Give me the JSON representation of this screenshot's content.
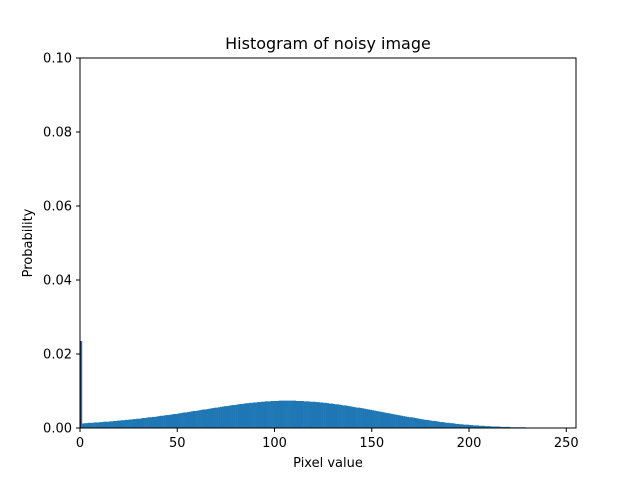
{
  "chart_data": {
    "type": "bar",
    "title": "Histogram of noisy image",
    "xlabel": "Pixel value",
    "ylabel": "Probability",
    "xlim": [
      0,
      255
    ],
    "ylim": [
      0,
      0.1
    ],
    "x_ticks": [
      0,
      50,
      100,
      150,
      200,
      250
    ],
    "x_tick_labels": [
      "0",
      "50",
      "100",
      "150",
      "200",
      "250"
    ],
    "y_ticks": [
      0,
      0.02,
      0.04,
      0.06,
      0.08,
      0.1
    ],
    "y_tick_labels": [
      "0.00",
      "0.02",
      "0.04",
      "0.06",
      "0.08",
      "0.10"
    ],
    "grid": false,
    "color": "#1f77b4",
    "bin_edges_start": 0,
    "bin_width": 1,
    "values": [
      0.0235,
      0.0012,
      0.0013,
      0.0013,
      0.0014,
      0.0014,
      0.0014,
      0.0015,
      0.0015,
      0.0015,
      0.0016,
      0.0016,
      0.0017,
      0.0017,
      0.0017,
      0.0018,
      0.0018,
      0.0019,
      0.0019,
      0.002,
      0.002,
      0.0021,
      0.0021,
      0.0022,
      0.0022,
      0.0023,
      0.0023,
      0.0024,
      0.0024,
      0.0025,
      0.0025,
      0.0026,
      0.0027,
      0.0027,
      0.0028,
      0.0029,
      0.0029,
      0.003,
      0.003,
      0.0031,
      0.0032,
      0.0033,
      0.0033,
      0.0034,
      0.0035,
      0.0035,
      0.0036,
      0.0037,
      0.0038,
      0.0038,
      0.0039,
      0.004,
      0.0041,
      0.0042,
      0.0042,
      0.0043,
      0.0044,
      0.0045,
      0.0046,
      0.0046,
      0.0047,
      0.0048,
      0.0049,
      0.005,
      0.005,
      0.0051,
      0.0052,
      0.0053,
      0.0054,
      0.0055,
      0.0055,
      0.0056,
      0.0057,
      0.0058,
      0.0059,
      0.0059,
      0.006,
      0.0061,
      0.0062,
      0.0062,
      0.0063,
      0.0064,
      0.0065,
      0.0065,
      0.0066,
      0.0067,
      0.0067,
      0.0068,
      0.0068,
      0.0069,
      0.0069,
      0.007,
      0.007,
      0.0071,
      0.0071,
      0.0072,
      0.0072,
      0.0072,
      0.0073,
      0.0073,
      0.0073,
      0.0073,
      0.0074,
      0.0074,
      0.0074,
      0.0074,
      0.0074,
      0.0074,
      0.0074,
      0.0074,
      0.0074,
      0.0073,
      0.0073,
      0.0073,
      0.0073,
      0.0072,
      0.0072,
      0.0072,
      0.0071,
      0.0071,
      0.0071,
      0.007,
      0.007,
      0.0069,
      0.0069,
      0.0068,
      0.0068,
      0.0067,
      0.0066,
      0.0066,
      0.0065,
      0.0064,
      0.0064,
      0.0063,
      0.0062,
      0.0061,
      0.0061,
      0.006,
      0.0059,
      0.0058,
      0.0057,
      0.0056,
      0.0055,
      0.0055,
      0.0054,
      0.0053,
      0.0052,
      0.0051,
      0.005,
      0.0049,
      0.0048,
      0.0047,
      0.0046,
      0.0045,
      0.0044,
      0.0043,
      0.0042,
      0.0041,
      0.004,
      0.0039,
      0.0038,
      0.0037,
      0.0036,
      0.0035,
      0.0034,
      0.0033,
      0.0032,
      0.0031,
      0.003,
      0.0029,
      0.0029,
      0.0028,
      0.0027,
      0.0026,
      0.0025,
      0.0024,
      0.0023,
      0.0022,
      0.0022,
      0.0021,
      0.002,
      0.0019,
      0.0019,
      0.0018,
      0.0017,
      0.0016,
      0.0016,
      0.0015,
      0.0014,
      0.0014,
      0.0013,
      0.0013,
      0.0012,
      0.0011,
      0.0011,
      0.001,
      0.001,
      0.0009,
      0.0009,
      0.0009,
      0.0008,
      0.0008,
      0.0007,
      0.0007,
      0.0007,
      0.0006,
      0.0006,
      0.0006,
      0.0005,
      0.0005,
      0.0005,
      0.0004,
      0.0004,
      0.0004,
      0.0004,
      0.0004,
      0.0003,
      0.0003,
      0.0003,
      0.0003,
      0.0003,
      0.0002,
      0.0002,
      0.0002,
      0.0002,
      0.0002,
      0.0002,
      0.0002,
      0.0002
    ]
  }
}
